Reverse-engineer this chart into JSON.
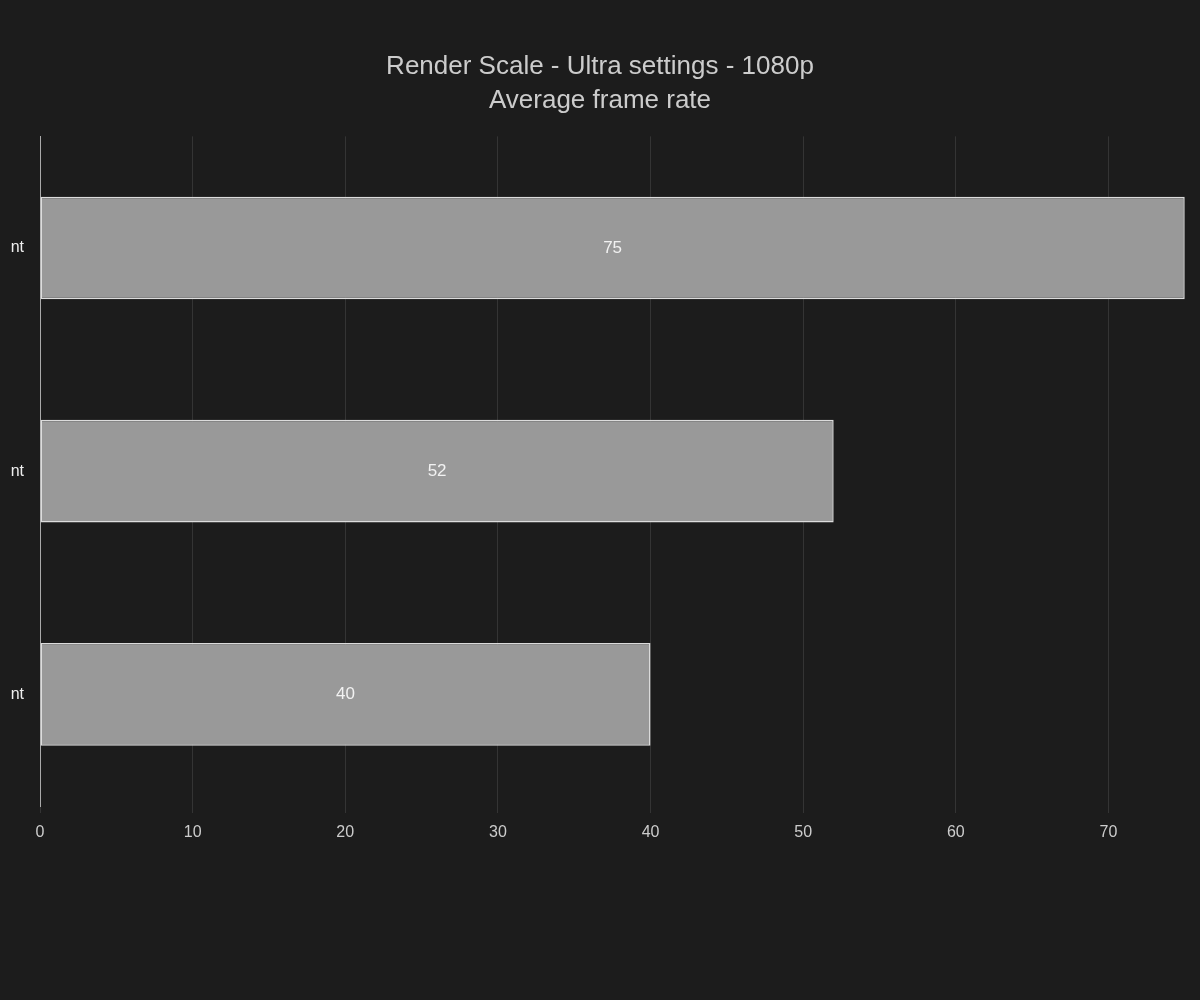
{
  "chart_data": {
    "type": "bar",
    "title": "Render Scale - Ultra settings - 1080p",
    "subtitle": "Average frame rate",
    "orientation": "horizontal",
    "categories": [
      "nt",
      "nt",
      "nt"
    ],
    "values": [
      75,
      52,
      40
    ],
    "color": "#999999",
    "xlim": [
      0,
      76
    ],
    "xticks": [
      0,
      10,
      20,
      30,
      40,
      50,
      60,
      70
    ],
    "grid": "x",
    "data_labels": true
  }
}
